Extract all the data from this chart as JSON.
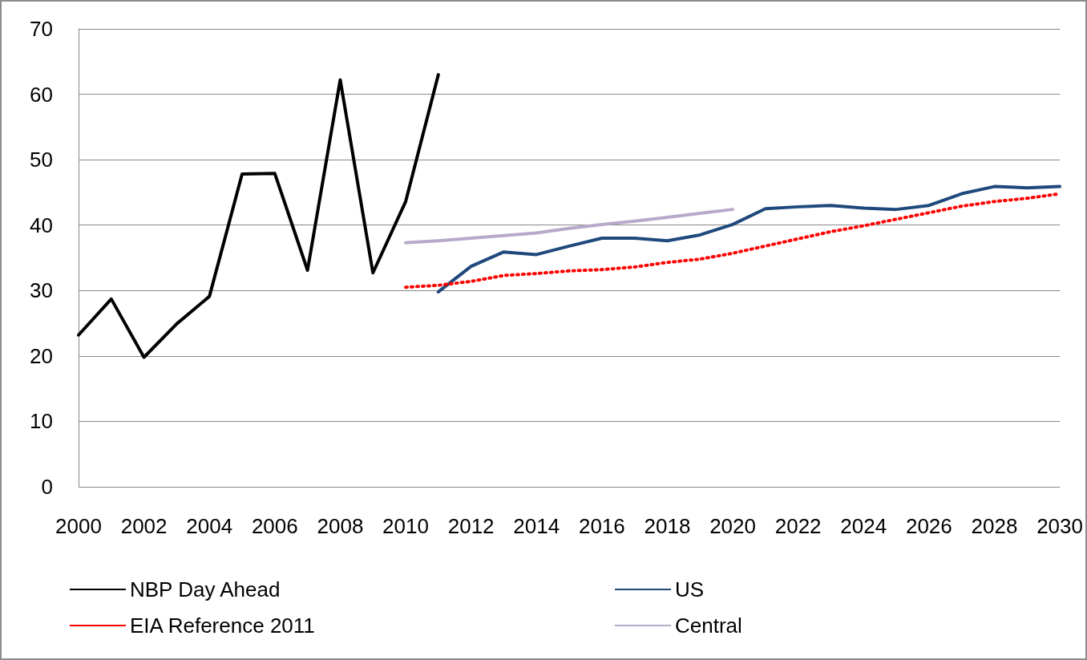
{
  "chart_data": {
    "type": "line",
    "xlim": [
      2000,
      2030
    ],
    "xticks": [
      2000,
      2002,
      2004,
      2006,
      2008,
      2010,
      2012,
      2014,
      2016,
      2018,
      2020,
      2022,
      2024,
      2026,
      2028,
      2030
    ],
    "ylim": [
      0,
      70
    ],
    "yticks": [
      0,
      10,
      20,
      30,
      40,
      50,
      60,
      70
    ],
    "grid": "y",
    "legend": "bottom",
    "marker": "none",
    "series": [
      {
        "name": "NBP Day Ahead",
        "color": "#000000",
        "line_style": "solid",
        "x": [
          2000,
          2001,
          2002,
          2003,
          2004,
          2005,
          2006,
          2007,
          2008,
          2009,
          2010,
          2011
        ],
        "values": [
          23.2,
          28.7,
          19.8,
          24.9,
          29.1,
          47.8,
          47.9,
          33.1,
          62.2,
          32.7,
          43.6,
          63.0
        ]
      },
      {
        "name": "US",
        "color": "#1f497d",
        "line_style": "solid",
        "x": [
          2011,
          2012,
          2013,
          2014,
          2015,
          2016,
          2017,
          2018,
          2019,
          2020,
          2021,
          2022,
          2023,
          2024,
          2025,
          2026,
          2027,
          2028,
          2029,
          2030
        ],
        "values": [
          29.8,
          33.7,
          35.9,
          35.5,
          36.8,
          38.0,
          38.0,
          37.6,
          38.5,
          40.1,
          42.5,
          42.8,
          43.0,
          42.6,
          42.4,
          43.0,
          44.8,
          45.9,
          45.7,
          45.9
        ]
      },
      {
        "name": "EIA Reference 2011",
        "color": "#ff0000",
        "line_style": "dotted",
        "x": [
          2010,
          2011,
          2012,
          2013,
          2014,
          2015,
          2016,
          2017,
          2018,
          2019,
          2020,
          2021,
          2022,
          2023,
          2024,
          2025,
          2026,
          2027,
          2028,
          2029,
          2030
        ],
        "values": [
          30.5,
          30.8,
          31.4,
          32.3,
          32.6,
          33.0,
          33.2,
          33.6,
          34.3,
          34.8,
          35.7,
          36.8,
          37.9,
          39.0,
          39.9,
          40.9,
          41.9,
          42.9,
          43.6,
          44.1,
          44.8
        ]
      },
      {
        "name": "Central",
        "color": "#b7a9c9",
        "line_style": "solid",
        "x": [
          2010,
          2011,
          2012,
          2013,
          2014,
          2015,
          2016,
          2017,
          2018,
          2019,
          2020
        ],
        "values": [
          37.3,
          37.6,
          38.0,
          38.4,
          38.8,
          39.5,
          40.1,
          40.6,
          41.2,
          41.8,
          42.4
        ]
      }
    ]
  }
}
